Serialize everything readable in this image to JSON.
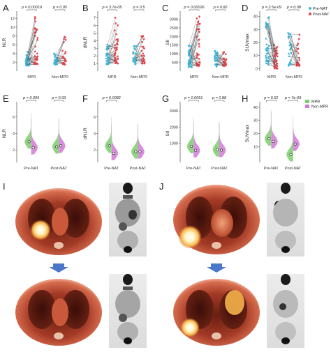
{
  "colors": {
    "pre": "#3fb7d9",
    "post": "#e2434b",
    "pair_line": "#444444",
    "mpr": "#7ccf6c",
    "nonmpr": "#d17ad6"
  },
  "legend_top": {
    "pre": "Pre-NAT",
    "post": "Post-NAT"
  },
  "legend_bottom": {
    "mpr": "MPR",
    "nonmpr": "Non-MPR"
  },
  "chart_data": [
    {
      "letter": "A",
      "type": "scatter",
      "ylabel": "NLR",
      "yticks": [
        "2",
        "4",
        "6",
        "8",
        "10",
        "12"
      ],
      "ylim": [
        0,
        13
      ],
      "categories": [
        "MPR",
        "Non-MPR"
      ],
      "pvalues": [
        "p = 0.00019",
        "p = 0.95"
      ],
      "pre_range": [
        [
          1.2,
          4.6
        ],
        [
          1.4,
          4.2
        ]
      ],
      "post_range": [
        [
          1.6,
          12.3
        ],
        [
          1.5,
          7.8
        ]
      ]
    },
    {
      "letter": "B",
      "type": "scatter",
      "ylabel": "dNLR",
      "yticks": [
        "1",
        "2",
        "3",
        "4",
        "5",
        "6",
        "7"
      ],
      "ylim": [
        0,
        7.5
      ],
      "categories": [
        "MPR",
        "Non-MPR"
      ],
      "pvalues": [
        "p = 3.7e-05",
        "p = 0.5"
      ],
      "pre_range": [
        [
          0.9,
          3.6
        ],
        [
          0.9,
          3.4
        ]
      ],
      "post_range": [
        [
          1.0,
          7.0
        ],
        [
          1.0,
          4.6
        ]
      ]
    },
    {
      "letter": "C",
      "type": "scatter",
      "ylabel": "SII",
      "yticks": [
        "500",
        "1000",
        "1500",
        "2000",
        "2500",
        "3000"
      ],
      "ylim": [
        0,
        3300
      ],
      "categories": [
        "MPR",
        "Non-MPR"
      ],
      "pvalues": [
        "p = 0.00026",
        "p = 0.82"
      ],
      "pre_range": [
        [
          200,
          1500
        ],
        [
          250,
          1200
        ]
      ],
      "post_range": [
        [
          300,
          3150
        ],
        [
          300,
          1100
        ]
      ]
    },
    {
      "letter": "D",
      "type": "scatter",
      "ylabel": "SUVmax",
      "yticks": [
        "0",
        "10",
        "20",
        "30",
        "40"
      ],
      "ylim": [
        -2,
        42
      ],
      "categories": [
        "MPR",
        "Non-MPR"
      ],
      "pvalues": [
        "p = 2.5e-09",
        "p = 0.08"
      ],
      "pre_range": [
        [
          3,
          40
        ],
        [
          2,
          28
        ]
      ],
      "post_range": [
        [
          0,
          18
        ],
        [
          2,
          26
        ]
      ]
    },
    {
      "letter": "E",
      "type": "violin",
      "ylabel": "NLR",
      "yticks": [
        "2",
        "4",
        "6"
      ],
      "ylim": [
        0.5,
        7.5
      ],
      "categories": [
        "Pre-NAT",
        "Post-NAT"
      ],
      "pvalues": [
        "p = 0.005",
        "p = 0.93"
      ],
      "means": [
        [
          3.0,
          2.3
        ],
        [
          2.4,
          2.5
        ]
      ]
    },
    {
      "letter": "F",
      "type": "violin",
      "ylabel": "dNLR",
      "yticks": [
        "2",
        "4",
        "6"
      ],
      "ylim": [
        0.5,
        7.5
      ],
      "categories": [
        "Pre-NAT",
        "Post-NAT"
      ],
      "pvalues": [
        "p = 0.0082",
        ""
      ],
      "means": [
        [
          2.5,
          1.6
        ],
        [
          1.8,
          1.8
        ]
      ]
    },
    {
      "letter": "G",
      "type": "violin",
      "ylabel": "SII",
      "yticks": [
        "1000",
        "2000",
        "3000"
      ],
      "ylim": [
        -200,
        3400
      ],
      "categories": [
        "Pre-NAT",
        "Post-NAT"
      ],
      "pvalues": [
        "p = 0.0051",
        "p = 0.88"
      ],
      "means": [
        [
          800,
          550
        ],
        [
          600,
          560
        ]
      ]
    },
    {
      "letter": "H",
      "type": "violin",
      "ylabel": "SUVmax",
      "yticks": [
        "10",
        "20",
        "30",
        "40"
      ],
      "ylim": [
        -2,
        42
      ],
      "categories": [
        "Pre-NAT",
        "Post-NAT"
      ],
      "pvalues": [
        "p = 0.52",
        "p = 7e-09"
      ],
      "means": [
        [
          16,
          14
        ],
        [
          4,
          12
        ]
      ]
    }
  ],
  "image_panels": {
    "left": "I",
    "right": "J"
  }
}
